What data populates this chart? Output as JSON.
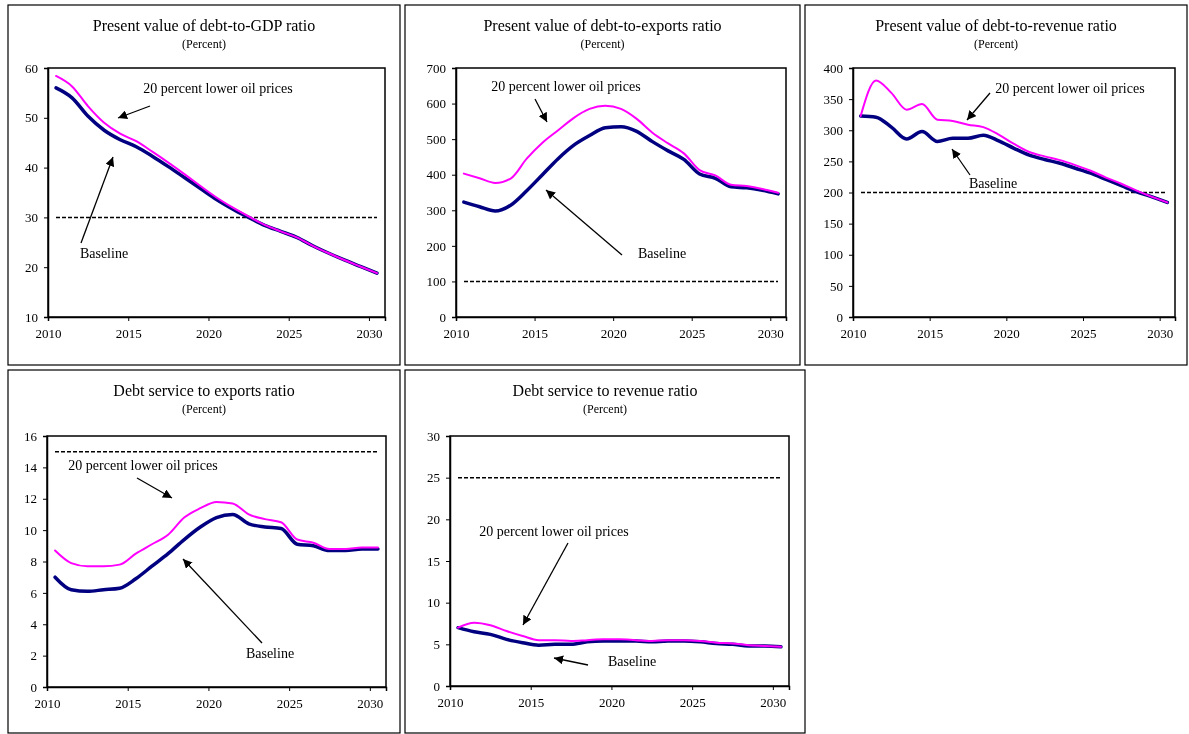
{
  "chart_data": [
    {
      "type": "line",
      "title": "Present value of debt-to-GDP ratio",
      "subtitle": "(Percent)",
      "x": [
        2010.5,
        2011.5,
        2012.5,
        2013.5,
        2014.5,
        2015.5,
        2016.5,
        2017.5,
        2018.5,
        2019.5,
        2020.5,
        2021.5,
        2022.5,
        2023.5,
        2024.5,
        2025.5,
        2026.5,
        2027.5,
        2028.5,
        2029.5,
        2030.5
      ],
      "xlim": [
        2010,
        2031
      ],
      "xticks": [
        2010,
        2015,
        2020,
        2025,
        2030
      ],
      "ylim": [
        10,
        60
      ],
      "yticks": [
        10,
        20,
        30,
        40,
        50,
        60
      ],
      "series": [
        {
          "color": "#000080",
          "values": [
            56,
            54,
            50.3,
            47.5,
            45.6,
            44.2,
            42.3,
            40.2,
            38,
            35.8,
            33.6,
            31.7,
            30,
            28.4,
            27.2,
            26,
            24.3,
            22.8,
            21.4,
            20.1,
            18.8
          ]
        },
        {
          "color": "#ff00ff",
          "values": [
            58.4,
            56.3,
            52.3,
            49,
            46.8,
            45.3,
            43.2,
            41,
            38.7,
            36.3,
            34,
            32,
            30.2,
            28.5,
            27.2,
            26,
            24.3,
            22.8,
            21.4,
            20.1,
            18.8
          ]
        }
      ],
      "ref_lines": [
        {
          "axis": "y",
          "value": 30,
          "color": "#000000",
          "line_style": "dashed"
        }
      ],
      "annotations": [
        "20 percent lower oil prices",
        "Baseline"
      ]
    },
    {
      "type": "line",
      "title": "Present value of debt-to-exports ratio",
      "subtitle": "(Percent)",
      "x": [
        2010.5,
        2011.5,
        2012.5,
        2013.5,
        2014.5,
        2015.5,
        2016.5,
        2017.5,
        2018.5,
        2019.5,
        2020.5,
        2021.5,
        2022.5,
        2023.5,
        2024.5,
        2025.5,
        2026.5,
        2027.5,
        2028.5,
        2029.5,
        2030.5
      ],
      "xlim": [
        2010,
        2031
      ],
      "xticks": [
        2010,
        2015,
        2020,
        2025,
        2030
      ],
      "ylim": [
        0,
        700
      ],
      "yticks": [
        0,
        100,
        200,
        300,
        400,
        500,
        600,
        700
      ],
      "series": [
        {
          "color": "#000080",
          "values": [
            323,
            310,
            298,
            315,
            355,
            400,
            445,
            483,
            510,
            532,
            535,
            522,
            493,
            467,
            443,
            402,
            390,
            366,
            363,
            356,
            346
          ]
        },
        {
          "color": "#ff00ff",
          "values": [
            403,
            390,
            377,
            390,
            445,
            490,
            525,
            560,
            585,
            594,
            585,
            557,
            518,
            488,
            460,
            413,
            398,
            372,
            368,
            360,
            349
          ]
        }
      ],
      "ref_lines": [
        {
          "axis": "y",
          "value": 100,
          "color": "#000000",
          "line_style": "dashed"
        }
      ],
      "annotations": [
        "20 percent lower oil prices",
        "Baseline"
      ]
    },
    {
      "type": "line",
      "title": "Present value of debt-to-revenue ratio",
      "subtitle": "(Percent)",
      "x": [
        2010.5,
        2011.5,
        2012.5,
        2013.5,
        2014.5,
        2015.5,
        2016.5,
        2017.5,
        2018.5,
        2019.5,
        2020.5,
        2021.5,
        2022.5,
        2023.5,
        2024.5,
        2025.5,
        2026.5,
        2027.5,
        2028.5,
        2029.5,
        2030.5
      ],
      "xlim": [
        2010,
        2031
      ],
      "xticks": [
        2010,
        2015,
        2020,
        2025,
        2030
      ],
      "ylim": [
        0,
        400
      ],
      "yticks": [
        0,
        50,
        100,
        150,
        200,
        250,
        300,
        350,
        400
      ],
      "series": [
        {
          "color": "#000080",
          "values": [
            323,
            321,
            305,
            286,
            298,
            282,
            287,
            287,
            292,
            283,
            271,
            260,
            253,
            247,
            239,
            231,
            221,
            211,
            201,
            193,
            184
          ]
        },
        {
          "color": "#ff00ff",
          "values": [
            323,
            380,
            360,
            333,
            342,
            317,
            315,
            309,
            305,
            293,
            278,
            265,
            258,
            252,
            244,
            235,
            224,
            214,
            203,
            193,
            184
          ]
        }
      ],
      "ref_lines": [
        {
          "axis": "y",
          "value": 200,
          "color": "#000000",
          "line_style": "dashed"
        }
      ],
      "annotations": [
        "20 percent lower oil prices",
        "Baseline"
      ]
    },
    {
      "type": "line",
      "title": "Debt service to exports ratio",
      "subtitle": "(Percent)",
      "x": [
        2010.5,
        2011.5,
        2012.5,
        2013.5,
        2014.5,
        2015.5,
        2016.5,
        2017.5,
        2018.5,
        2019.5,
        2020.5,
        2021.5,
        2022.5,
        2023.5,
        2024.5,
        2025.5,
        2026.5,
        2027.5,
        2028.5,
        2029.5,
        2030.5
      ],
      "xlim": [
        2010,
        2031
      ],
      "xticks": [
        2010,
        2015,
        2020,
        2025,
        2030
      ],
      "ylim": [
        0,
        16
      ],
      "yticks": [
        0,
        2,
        4,
        6,
        8,
        10,
        12,
        14,
        16
      ],
      "series": [
        {
          "color": "#000080",
          "values": [
            7,
            6.2,
            6.1,
            6.2,
            6.3,
            6.9,
            7.7,
            8.5,
            9.4,
            10.2,
            10.8,
            11,
            10.4,
            10.2,
            10.1,
            9.1,
            9,
            8.7,
            8.7,
            8.8,
            8.8
          ]
        },
        {
          "color": "#ff00ff",
          "values": [
            8.7,
            7.9,
            7.7,
            7.7,
            7.8,
            8.5,
            9.1,
            9.7,
            10.8,
            11.4,
            11.8,
            11.7,
            11,
            10.7,
            10.5,
            9.4,
            9.2,
            8.8,
            8.8,
            8.9,
            8.9
          ]
        }
      ],
      "ref_lines": [
        {
          "axis": "y",
          "value": 15,
          "color": "#000000",
          "line_style": "dashed"
        }
      ],
      "annotations": [
        "20 percent lower oil prices",
        "Baseline"
      ]
    },
    {
      "type": "line",
      "title": "Debt service to revenue ratio",
      "subtitle": "(Percent)",
      "x": [
        2010.5,
        2011.5,
        2012.5,
        2013.5,
        2014.5,
        2015.5,
        2016.5,
        2017.5,
        2018.5,
        2019.5,
        2020.5,
        2021.5,
        2022.5,
        2023.5,
        2024.5,
        2025.5,
        2026.5,
        2027.5,
        2028.5,
        2029.5,
        2030.5
      ],
      "xlim": [
        2010,
        2031
      ],
      "xticks": [
        2010,
        2015,
        2020,
        2025,
        2030
      ],
      "ylim": [
        0,
        30
      ],
      "yticks": [
        0,
        5,
        10,
        15,
        20,
        25,
        30
      ],
      "series": [
        {
          "color": "#000080",
          "values": [
            7,
            6.5,
            6.2,
            5.6,
            5.2,
            4.9,
            5,
            5,
            5.3,
            5.4,
            5.4,
            5.4,
            5.3,
            5.4,
            5.4,
            5.3,
            5.1,
            5,
            4.8,
            4.8,
            4.7
          ]
        },
        {
          "color": "#ff00ff",
          "values": [
            7,
            7.6,
            7.3,
            6.6,
            6,
            5.5,
            5.5,
            5.4,
            5.5,
            5.6,
            5.6,
            5.5,
            5.4,
            5.5,
            5.5,
            5.4,
            5.2,
            5.1,
            4.9,
            4.8,
            4.7
          ]
        }
      ],
      "ref_lines": [
        {
          "axis": "y",
          "value": 25,
          "color": "#000000",
          "line_style": "dashed"
        }
      ],
      "annotations": [
        "20 percent lower oil prices",
        "Baseline"
      ]
    }
  ]
}
